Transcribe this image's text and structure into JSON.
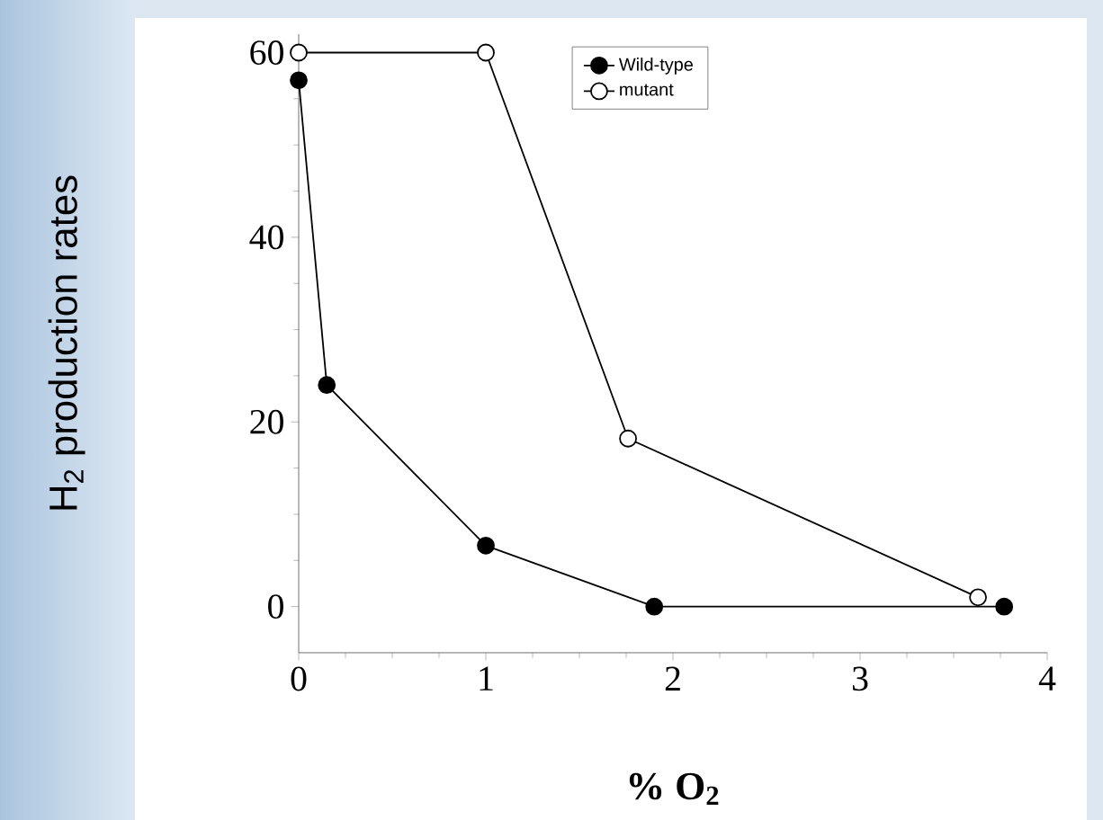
{
  "chart_data": {
    "type": "line",
    "xlabel": "% O$_{2}$",
    "ylabel": "H$_{2}$ production rates",
    "series": [
      {
        "name": "Wild-type",
        "color": "#000000",
        "x": [
          0,
          0.15,
          1,
          1.9,
          3.77
        ],
        "values": [
          57,
          24,
          6.6,
          0,
          0
        ]
      },
      {
        "name": "mutant",
        "color": "#000000",
        "x": [
          0,
          1,
          1.76,
          3.63
        ],
        "values": [
          60,
          60,
          18.2,
          1
        ]
      }
    ],
    "xlim": [
      0,
      4
    ],
    "ylim": [
      -5,
      62
    ],
    "xticks": [
      0,
      1,
      2,
      3,
      4
    ],
    "yticks": [
      0,
      20,
      40,
      60
    ],
    "marker": "circle",
    "line_style": "solid",
    "legend": "top",
    "grid": false
  }
}
